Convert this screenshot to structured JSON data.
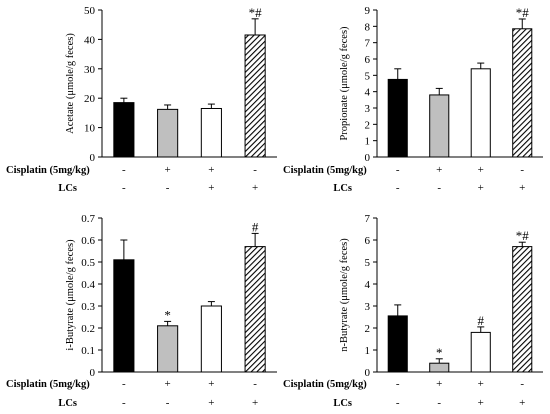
{
  "figure": {
    "row_labels": [
      "Cisplatin (5mg/kg)",
      "LCs"
    ],
    "row_signs": [
      [
        "-",
        "+",
        "+",
        "-"
      ],
      [
        "-",
        "-",
        "+",
        "+"
      ]
    ]
  },
  "colors": {
    "bars": [
      "#000000",
      "#bfbfbf",
      "#ffffff",
      "hatch"
    ],
    "axis": "#000000"
  },
  "chart_data": [
    {
      "type": "bar",
      "ylabel": "Acetate (μmole/g feces)",
      "ylim": [
        0,
        50
      ],
      "yticks": [
        0,
        10,
        20,
        30,
        40,
        50
      ],
      "yticklabels": [
        "0",
        "10",
        "20",
        "30",
        "40",
        "50"
      ],
      "values": [
        18.5,
        16.2,
        16.5,
        41.5
      ],
      "errors": [
        1.5,
        1.5,
        1.5,
        5.5
      ],
      "annotations": [
        "",
        "",
        "",
        "*#"
      ]
    },
    {
      "type": "bar",
      "ylabel": "Propionate (μmole/g feces)",
      "ylim": [
        0,
        9
      ],
      "yticks": [
        0,
        1,
        2,
        3,
        4,
        5,
        6,
        7,
        8,
        9
      ],
      "yticklabels": [
        "0",
        "1",
        "2",
        "3",
        "4",
        "5",
        "6",
        "7",
        "8",
        "9"
      ],
      "values": [
        4.75,
        3.8,
        5.4,
        7.85
      ],
      "errors": [
        0.65,
        0.4,
        0.35,
        0.6
      ],
      "annotations": [
        "",
        "",
        "",
        "*#"
      ]
    },
    {
      "type": "bar",
      "ylabel": "i-Butyrate (μmole/g feces)",
      "ylim": [
        0,
        0.7
      ],
      "yticks": [
        0,
        0.1,
        0.2,
        0.3,
        0.4,
        0.5,
        0.6,
        0.7
      ],
      "yticklabels": [
        "0",
        "0.1",
        "0.2",
        "0.3",
        "0.4",
        "0.5",
        "0.6",
        "0.7"
      ],
      "values": [
        0.51,
        0.21,
        0.3,
        0.57
      ],
      "errors": [
        0.09,
        0.02,
        0.02,
        0.06
      ],
      "annotations": [
        "",
        "*",
        "",
        "#"
      ]
    },
    {
      "type": "bar",
      "ylabel": "n-Butyrate (μmole/g feces)",
      "ylim": [
        0,
        7
      ],
      "yticks": [
        0,
        1,
        2,
        3,
        4,
        5,
        6,
        7
      ],
      "yticklabels": [
        "0",
        "1",
        "2",
        "3",
        "4",
        "5",
        "6",
        "7"
      ],
      "values": [
        2.55,
        0.4,
        1.8,
        5.7
      ],
      "errors": [
        0.5,
        0.2,
        0.25,
        0.2
      ],
      "annotations": [
        "",
        "*",
        "#",
        "*#"
      ]
    }
  ]
}
